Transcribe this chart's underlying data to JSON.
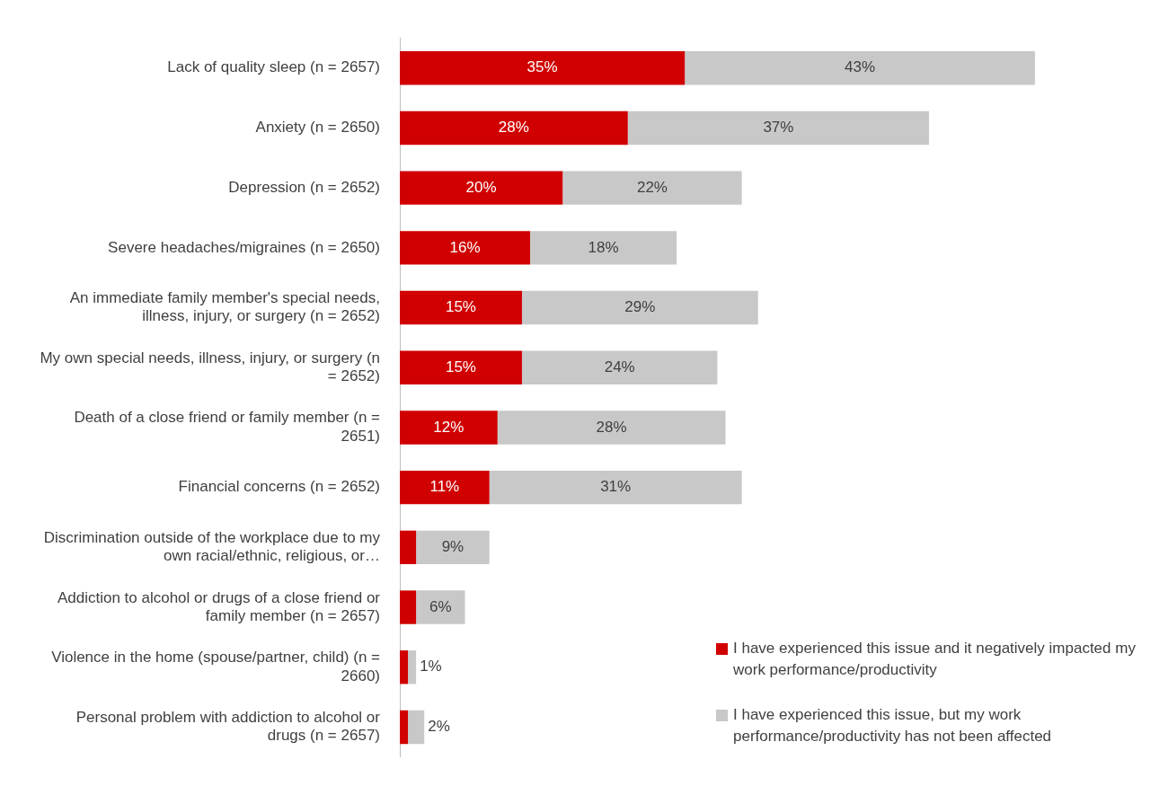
{
  "chart_data": {
    "type": "bar",
    "orientation": "horizontal",
    "stacked": true,
    "legend": "bottom right",
    "categories": [
      "Lack of quality sleep (n = 2657)",
      "Anxiety (n = 2650)",
      "Depression (n = 2652)",
      "Severe headaches/migraines (n = 2650)",
      "An immediate family member's special needs, illness, injury, or surgery (n = 2652)",
      "My own special needs, illness, injury, or surgery (n = 2652)",
      "Death of a close friend or family member (n = 2651)",
      "Financial concerns (n = 2652)",
      "Discrimination outside of the workplace due to my own racial/ethnic, religious, or…",
      "Addiction to alcohol or drugs of a close friend or family member (n = 2657)",
      "Violence in the home (spouse/partner, child) (n = 2660)",
      "Personal problem with addiction to alcohol or drugs (n = 2657)"
    ],
    "series": [
      {
        "name": "I have experienced this issue and it negatively impacted my work performance/productivity",
        "color": "#d00000",
        "values": [
          35,
          28,
          20,
          16,
          15,
          15,
          12,
          11,
          2,
          2,
          1,
          1
        ],
        "value_labels": [
          "35%",
          "28%",
          "20%",
          "16%",
          "15%",
          "15%",
          "12%",
          "11%",
          null,
          null,
          null,
          null
        ]
      },
      {
        "name": "I have experienced this issue, but my work performance/productivity has not been affected",
        "color": "#c8c8c9",
        "values": [
          43,
          37,
          22,
          18,
          29,
          24,
          28,
          31,
          9,
          6,
          1,
          2
        ],
        "value_labels": [
          "43%",
          "37%",
          "22%",
          "18%",
          "29%",
          "24%",
          "28%",
          "31%",
          "9%",
          "6%",
          "1%",
          "2%"
        ]
      }
    ]
  }
}
